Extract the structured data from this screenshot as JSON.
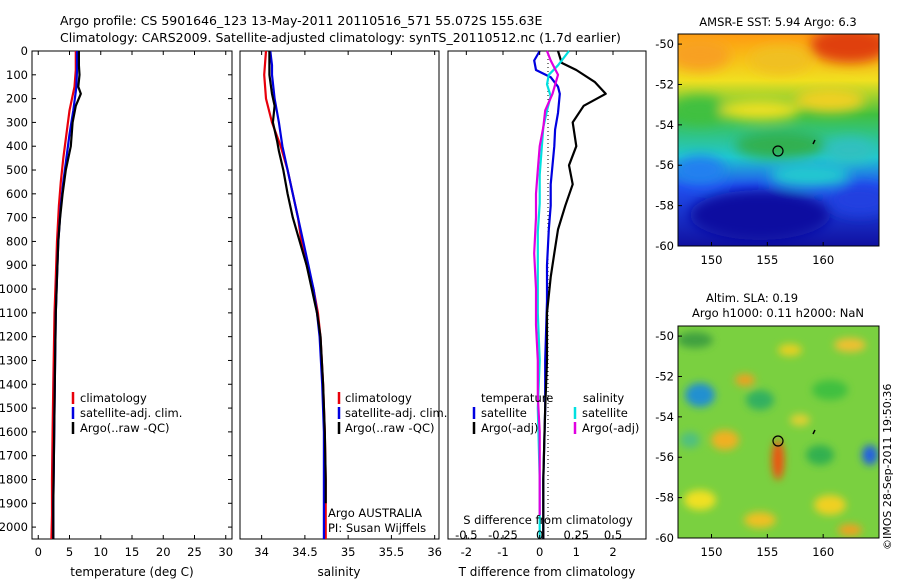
{
  "header": {
    "line1": "Argo profile: CS 5901646_123 13-May-2011 20110516_571 55.072S 155.63E",
    "line2": "Climatology: CARS2009. Satellite-adjusted climatology: synTS_20110512.nc (1.7d earlier)"
  },
  "colors": {
    "climatology": "#e8000b",
    "satellite": "#0000e0",
    "argo": "#000000",
    "cyan": "#00e0e0",
    "magenta": "#e000e0"
  },
  "watermark": "©IMOS 28-Sep-2011 19:50:36",
  "chart_data": [
    {
      "type": "line",
      "panel": "temperature",
      "xlabel": "temperature (deg C)",
      "ylabel": "",
      "xlim": [
        -1,
        31
      ],
      "ylim": [
        2050,
        0
      ],
      "xticks": [
        "0",
        "5",
        "10",
        "15",
        "20",
        "25",
        "30"
      ],
      "yticks": [
        "0",
        "100",
        "200",
        "300",
        "400",
        "500",
        "600",
        "700",
        "800",
        "900",
        "1000",
        "1100",
        "1200",
        "1300",
        "1400",
        "1500",
        "1600",
        "1700",
        "1800",
        "1900",
        "2000"
      ],
      "legend_position": "bottom-right",
      "series": [
        {
          "name": "climatology",
          "color": "#e8000b",
          "x": [
            6.0,
            6.0,
            5.8,
            5.0,
            4.5,
            4.0,
            3.6,
            3.3,
            3.0,
            2.8,
            2.6,
            2.5,
            2.4,
            2.3,
            2.2,
            2.2,
            2.1
          ],
          "y": [
            0,
            80,
            150,
            250,
            350,
            450,
            550,
            650,
            800,
            950,
            1100,
            1250,
            1400,
            1600,
            1800,
            1950,
            2050
          ]
        },
        {
          "name": "satellite-adj. clim.",
          "color": "#0000e0",
          "x": [
            6.2,
            6.2,
            6.1,
            5.6,
            5.0,
            4.5,
            4.0,
            3.6,
            3.2,
            3.0,
            2.8,
            2.7,
            2.6,
            2.5,
            2.4,
            2.4
          ],
          "y": [
            0,
            80,
            150,
            250,
            350,
            450,
            550,
            650,
            800,
            950,
            1100,
            1300,
            1500,
            1700,
            1900,
            2050
          ]
        },
        {
          "name": "Argo(..raw -QC)",
          "color": "#000000",
          "x": [
            6.5,
            6.5,
            6.6,
            6.4,
            6.8,
            6.0,
            5.5,
            5.2,
            4.4,
            3.9,
            3.5,
            3.2,
            3.0,
            2.8,
            2.7,
            2.6,
            2.5,
            2.4,
            2.4
          ],
          "y": [
            0,
            60,
            100,
            150,
            180,
            230,
            300,
            400,
            500,
            600,
            700,
            800,
            950,
            1100,
            1300,
            1500,
            1700,
            1900,
            2050
          ]
        }
      ],
      "legend": [
        "climatology",
        "satellite-adj. clim.",
        "Argo(..raw -QC)"
      ]
    },
    {
      "type": "line",
      "panel": "salinity",
      "xlabel": "salinity",
      "ylabel": "",
      "xlim": [
        33.75,
        36.05
      ],
      "ylim": [
        2050,
        0
      ],
      "xticks": [
        "34",
        "34.5",
        "35",
        "35.5",
        "36"
      ],
      "legend_position": "bottom-right",
      "series": [
        {
          "name": "climatology",
          "color": "#e8000b",
          "x": [
            34.05,
            34.03,
            34.05,
            34.12,
            34.22,
            34.3,
            34.36,
            34.42,
            34.46,
            34.52,
            34.6,
            34.65,
            34.68,
            34.71,
            34.73,
            34.74,
            34.74
          ],
          "y": [
            0,
            100,
            200,
            300,
            400,
            500,
            600,
            700,
            800,
            900,
            1000,
            1100,
            1200,
            1400,
            1600,
            1800,
            2050
          ]
        },
        {
          "name": "satellite-adj. clim.",
          "color": "#0000e0",
          "x": [
            34.1,
            34.12,
            34.12,
            34.15,
            34.2,
            34.24,
            34.3,
            34.36,
            34.42,
            34.48,
            34.54,
            34.6,
            34.64,
            34.67,
            34.7,
            34.72,
            34.72,
            34.72
          ],
          "y": [
            0,
            60,
            100,
            200,
            300,
            400,
            500,
            600,
            700,
            800,
            900,
            1000,
            1100,
            1200,
            1400,
            1600,
            1800,
            2050
          ]
        },
        {
          "name": "Argo(..raw -QC)",
          "color": "#000000",
          "x": [
            34.09,
            34.09,
            34.12,
            34.15,
            34.13,
            34.18,
            34.2,
            34.25,
            34.3,
            34.36,
            34.44,
            34.52,
            34.58,
            34.64,
            34.68,
            34.71,
            34.73,
            34.74,
            34.74
          ],
          "y": [
            0,
            100,
            180,
            230,
            300,
            380,
            420,
            500,
            600,
            700,
            800,
            900,
            1000,
            1100,
            1200,
            1400,
            1600,
            1800,
            1900
          ]
        }
      ],
      "legend": [
        "climatology",
        "satellite-adj. clim.",
        "Argo(..raw -QC)"
      ],
      "annotation": [
        "Argo AUSTRALIA",
        "PI: Susan Wijffels"
      ]
    },
    {
      "type": "line",
      "panel": "difference",
      "xlabel": "T difference from climatology",
      "ylabel": "",
      "top_axis_label": "S difference from climatology",
      "xlim": [
        -2.5,
        2.9
      ],
      "ylim": [
        2050,
        0
      ],
      "xticks": [
        "-2",
        "-1",
        "0",
        "1",
        "2"
      ],
      "top_ticks": [
        "-0.5",
        "-0.25",
        "0",
        "0.25",
        "0.5"
      ],
      "legend_position": "bottom",
      "legend_titles": [
        "temperature",
        "salinity"
      ],
      "series": [
        {
          "name": "satellite",
          "group": "temperature",
          "color": "#0000e0",
          "x": [
            0.0,
            -0.15,
            -0.1,
            0.3,
            0.5,
            0.55,
            0.5,
            0.42,
            0.4,
            0.35,
            0.3,
            0.3,
            0.25,
            0.2,
            0.2,
            0.15,
            0.15,
            0.1,
            0.1
          ],
          "y": [
            0,
            40,
            80,
            110,
            150,
            180,
            260,
            330,
            400,
            480,
            560,
            650,
            750,
            900,
            1050,
            1300,
            1500,
            1800,
            2050
          ]
        },
        {
          "name": "Argo(-adj)",
          "group": "temperature",
          "color": "#000000",
          "x": [
            0.5,
            0.6,
            1.0,
            1.5,
            1.8,
            1.2,
            0.9,
            1.0,
            0.8,
            0.9,
            0.7,
            0.5,
            0.4,
            0.3,
            0.2,
            0.2,
            0.15,
            0.1,
            0.1
          ],
          "y": [
            0,
            50,
            80,
            130,
            180,
            230,
            300,
            400,
            480,
            560,
            650,
            750,
            850,
            950,
            1100,
            1300,
            1500,
            1800,
            2050
          ]
        },
        {
          "name": "satellite",
          "group": "salinity",
          "color": "#00e0e0",
          "x": [
            0.8,
            0.5,
            0.25,
            0.2,
            0.3,
            0.2,
            0.1,
            0.05,
            0.0,
            0.0,
            -0.05,
            -0.05,
            -0.05,
            0.0,
            -0.05,
            0.0,
            0.0
          ],
          "y": [
            0,
            60,
            100,
            140,
            190,
            250,
            320,
            420,
            520,
            640,
            760,
            900,
            1100,
            1300,
            1500,
            1800,
            2050
          ]
        },
        {
          "name": "Argo(-adj)",
          "group": "salinity",
          "color": "#e000e0",
          "x": [
            0.2,
            0.3,
            0.5,
            0.35,
            0.15,
            0.1,
            0.0,
            -0.05,
            -0.1,
            -0.1,
            -0.15,
            -0.1,
            -0.1,
            -0.05,
            -0.05,
            0.0,
            0.0,
            0.0
          ],
          "y": [
            0,
            40,
            100,
            180,
            250,
            320,
            400,
            500,
            600,
            700,
            850,
            1000,
            1150,
            1300,
            1450,
            1600,
            1800,
            1950
          ]
        }
      ],
      "legend": [
        "satellite",
        "Argo(-adj)",
        "satellite",
        "Argo(-adj)"
      ]
    },
    {
      "type": "heatmap",
      "panel": "sst-map",
      "title": "AMSR-E SST: 5.94 Argo: 6.3",
      "xticks": [
        "150",
        "155",
        "160"
      ],
      "yticks": [
        "-50",
        "-52",
        "-54",
        "-56",
        "-58",
        "-60"
      ],
      "xlim": [
        147,
        165
      ],
      "ylim": [
        -60,
        -49.5
      ],
      "marker": {
        "lon": 155.6,
        "lat": -55.1
      }
    },
    {
      "type": "heatmap",
      "panel": "sla-map",
      "title_lines": [
        "Altim. SLA: 0.19",
        "Argo h1000: 0.11 h2000: NaN"
      ],
      "xticks": [
        "150",
        "155",
        "160"
      ],
      "yticks": [
        "-50",
        "-52",
        "-54",
        "-56",
        "-58",
        "-60"
      ],
      "xlim": [
        147,
        165
      ],
      "ylim": [
        -60,
        -49.5
      ],
      "marker": {
        "lon": 155.6,
        "lat": -55.1
      }
    }
  ]
}
